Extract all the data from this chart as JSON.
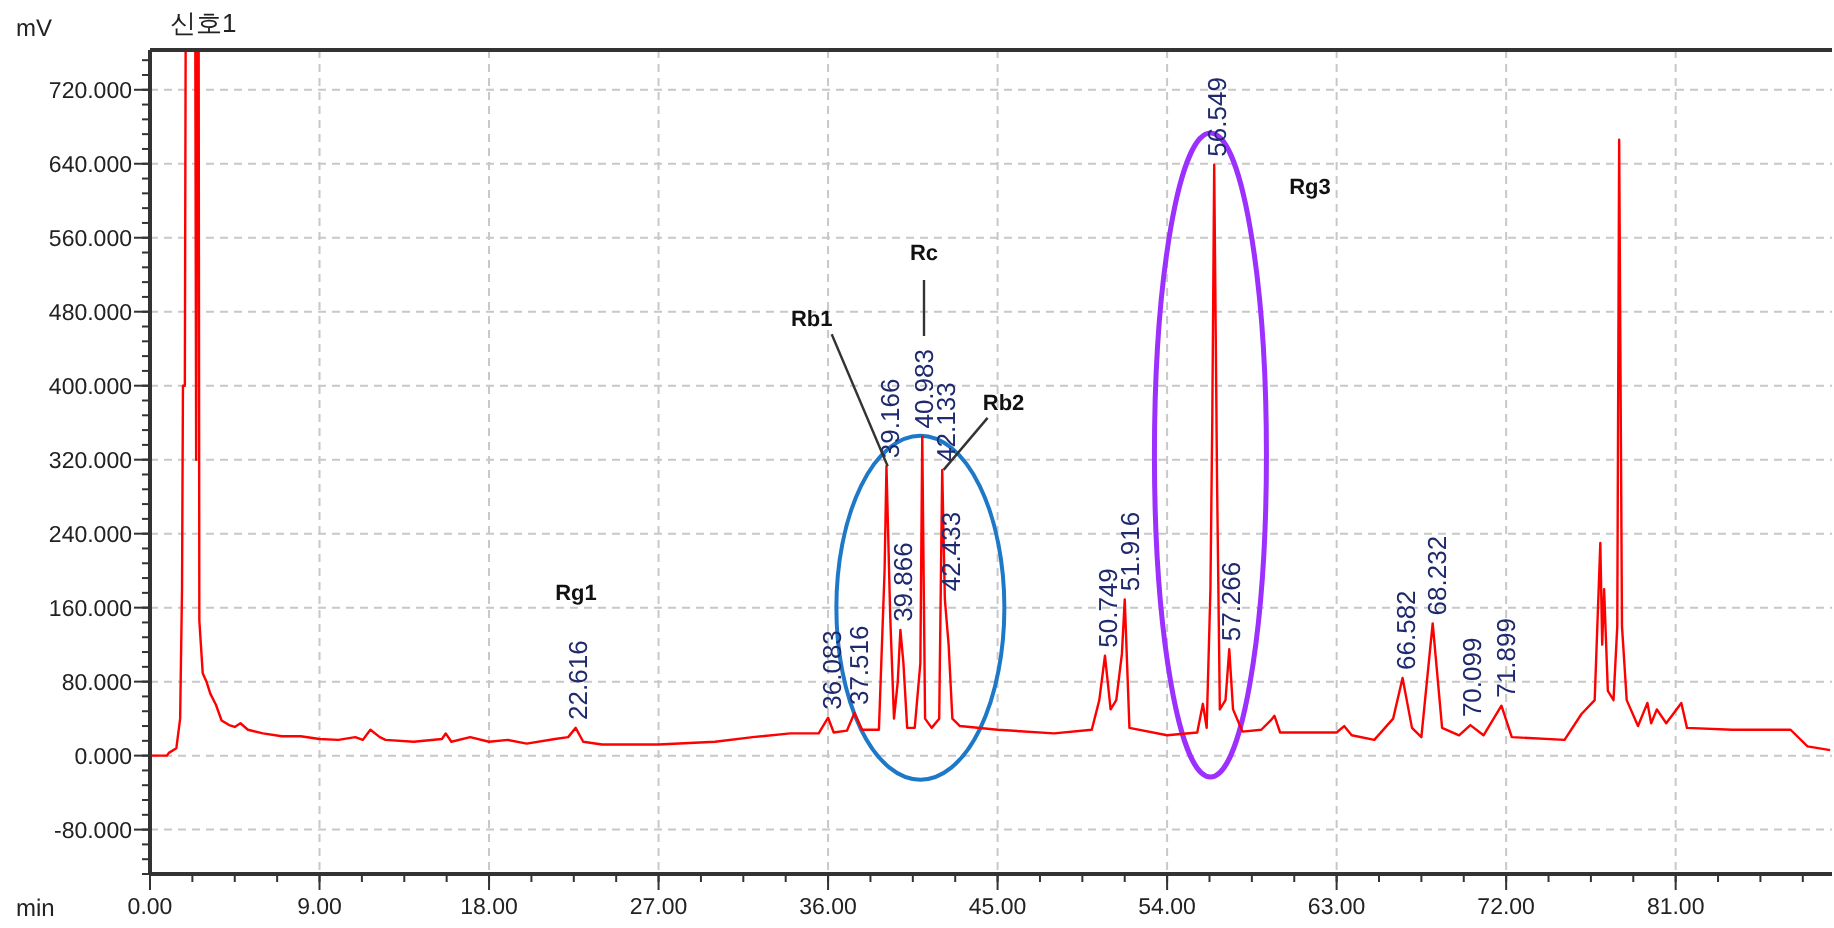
{
  "chart_data": {
    "type": "line",
    "title": "신호1",
    "xlabel": "min",
    "ylabel": "mV",
    "xlim": [
      0,
      89.3
    ],
    "ylim": [
      -128,
      763
    ],
    "xticks": [
      {
        "value": 0,
        "label": "0.00"
      },
      {
        "value": 9,
        "label": "9.00"
      },
      {
        "value": 18,
        "label": "18.00"
      },
      {
        "value": 27,
        "label": "27.00"
      },
      {
        "value": 36,
        "label": "36.00"
      },
      {
        "value": 45,
        "label": "45.00"
      },
      {
        "value": 54,
        "label": "54.00"
      },
      {
        "value": 63,
        "label": "63.00"
      },
      {
        "value": 72,
        "label": "72.00"
      },
      {
        "value": 81,
        "label": "81.00"
      }
    ],
    "yticks": [
      {
        "value": -80,
        "label": "-80.000"
      },
      {
        "value": 0,
        "label": "0.000"
      },
      {
        "value": 80,
        "label": "80.000"
      },
      {
        "value": 160,
        "label": "160.000"
      },
      {
        "value": 240,
        "label": "240.000"
      },
      {
        "value": 320,
        "label": "320.000"
      },
      {
        "value": 400,
        "label": "400.000"
      },
      {
        "value": 480,
        "label": "480.000"
      },
      {
        "value": 560,
        "label": "560.000"
      },
      {
        "value": 640,
        "label": "640.000"
      },
      {
        "value": 720,
        "label": "720.000"
      }
    ],
    "grid": true,
    "legend": false,
    "marker": "none",
    "line_style": "solid",
    "series": [
      {
        "color": "#ff0000",
        "x": [
          0,
          0.9,
          1.0,
          1.4,
          1.6,
          1.7,
          1.75,
          1.85,
          1.9,
          2.4,
          2.45,
          2.5,
          2.58,
          2.62,
          2.8,
          3.0,
          3.2,
          3.5,
          3.8,
          4.2,
          4.5,
          4.8,
          5.2,
          6,
          7,
          8,
          9,
          10,
          10.9,
          11.3,
          11.7,
          12.2,
          12.5,
          14,
          15.5,
          15.7,
          16,
          17,
          18,
          19,
          20,
          21.5,
          22.2,
          22.6,
          23,
          24,
          27,
          30,
          32,
          34,
          35.5,
          36.0,
          36.3,
          37.0,
          37.4,
          37.8,
          38.7,
          39.0,
          39.1,
          39.3,
          39.5,
          39.7,
          39.84,
          40.0,
          40.2,
          40.6,
          40.9,
          41.0,
          41.15,
          41.5,
          41.9,
          42.06,
          42.2,
          42.4,
          42.6,
          43,
          45,
          48,
          50,
          50.4,
          50.7,
          51.0,
          51.3,
          51.6,
          51.75,
          52.0,
          54,
          55.6,
          55.9,
          56.1,
          56.3,
          56.4,
          56.5,
          56.65,
          56.8,
          57.1,
          57.3,
          57.5,
          58,
          59,
          59.5,
          59.7,
          60,
          63,
          63.4,
          63.8,
          65,
          66.0,
          66.5,
          67.0,
          67.5,
          68.1,
          68.6,
          69.5,
          70.1,
          70.8,
          71.75,
          72.3,
          75.1,
          76.0,
          76.7,
          77.0,
          77.1,
          77.2,
          77.4,
          77.7,
          77.9,
          78.0,
          78.15,
          78.4,
          79,
          79.5,
          79.7,
          80.0,
          80.5,
          81.3,
          81.6,
          84,
          87.1,
          88,
          89.2
        ],
        "values": [
          0,
          0,
          3,
          8,
          40,
          180,
          400,
          400,
          null,
          null,
          320,
          null,
          null,
          146,
          89,
          80,
          67,
          55,
          38,
          33,
          31,
          35,
          28,
          24,
          21,
          21,
          18,
          17,
          20,
          17,
          28,
          20,
          17,
          15,
          18,
          24,
          15,
          20,
          15,
          17,
          13,
          18,
          20,
          30,
          15,
          12,
          12,
          15,
          20,
          24,
          24,
          41,
          25,
          27,
          46,
          28,
          28,
          200,
          313,
          150,
          40,
          80,
          136,
          100,
          30,
          30,
          100,
          345,
          40,
          30,
          40,
          309,
          169,
          120,
          40,
          32,
          28,
          24,
          28,
          60,
          108,
          50,
          60,
          110,
          169,
          30,
          22,
          25,
          56,
          30,
          180,
          367,
          639,
          300,
          50,
          60,
          115,
          50,
          26,
          28,
          38,
          43,
          25,
          25,
          32,
          22,
          17,
          40,
          84,
          30,
          20,
          143,
          30,
          22,
          33,
          22,
          54,
          20,
          17,
          45,
          60,
          230,
          120,
          180,
          70,
          60,
          140,
          666,
          140,
          60,
          32,
          57,
          35,
          50,
          35,
          57,
          30,
          28,
          28,
          10,
          6
        ]
      }
    ],
    "annotations": [
      {
        "text": "22.616",
        "x": 22.616,
        "y": 30
      },
      {
        "text": "36.083",
        "x": 36.083,
        "y": 41
      },
      {
        "text": "37.516",
        "x": 37.516,
        "y": 46
      },
      {
        "text": "39.166",
        "x": 39.166,
        "y": 313
      },
      {
        "text": "39.866",
        "x": 39.866,
        "y": 136
      },
      {
        "text": "40.983",
        "x": 40.983,
        "y": 345
      },
      {
        "text": "42.133",
        "x": 42.133,
        "y": 309
      },
      {
        "text": "42.433",
        "x": 42.433,
        "y": 169
      },
      {
        "text": "50.749",
        "x": 50.749,
        "y": 108
      },
      {
        "text": "51.916",
        "x": 51.916,
        "y": 169
      },
      {
        "text": "56.549",
        "x": 56.549,
        "y": 639
      },
      {
        "text": "57.266",
        "x": 57.266,
        "y": 115
      },
      {
        "text": "66.582",
        "x": 66.582,
        "y": 84
      },
      {
        "text": "68.232",
        "x": 68.232,
        "y": 143
      },
      {
        "text": "70.099",
        "x": 70.099,
        "y": 33
      },
      {
        "text": "71.899",
        "x": 71.899,
        "y": 54
      },
      "Rg1",
      {
        "text": "Rb1",
        "x": 39.166,
        "y": 313
      },
      "Rc",
      {
        "text": "Rb2",
        "x": 42.133,
        "y": 309
      },
      "Rg3"
    ]
  }
}
